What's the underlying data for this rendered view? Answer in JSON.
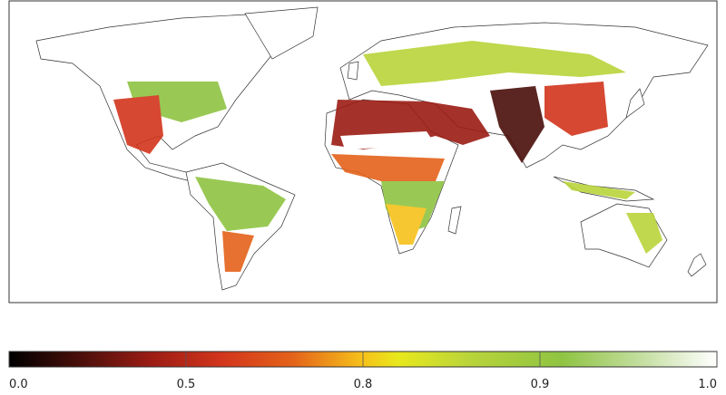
{
  "colorbar": {
    "ticks": [
      {
        "value": 0,
        "label": "0.0"
      },
      0.5,
      0.8,
      0.9,
      {
        "value": 1,
        "label": "1.0"
      }
    ]
  }
}
